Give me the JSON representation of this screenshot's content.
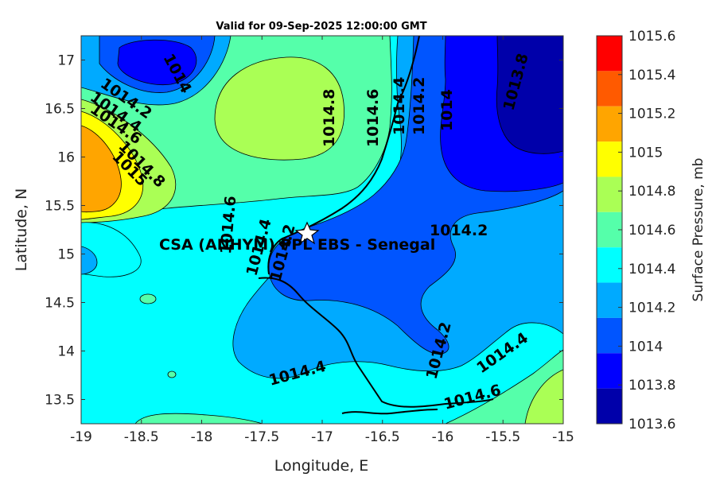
{
  "title": "Valid for 09-Sep-2025 12:00:00 GMT",
  "xlabel": "Longitude, E",
  "ylabel": "Latitude, N",
  "x_ticks": [
    "-19",
    "-18.5",
    "-18",
    "-17.5",
    "-17",
    "-16.5",
    "-16",
    "-15.5",
    "-15"
  ],
  "y_ticks": [
    "17",
    "16.5",
    "16",
    "15.5",
    "15",
    "14.5",
    "14",
    "13.5"
  ],
  "colorbar": {
    "label": "Surface Pressure, mb",
    "ticks": [
      "1015.6",
      "1015.4",
      "1015.2",
      "1015",
      "1014.8",
      "1014.6",
      "1014.4",
      "1014.2",
      "1014",
      "1013.8",
      "1013.6"
    ],
    "colors": [
      "#ff0000",
      "#ff5a00",
      "#ffa500",
      "#ffff00",
      "#aaff55",
      "#55ffaa",
      "#00ffff",
      "#00aaff",
      "#0055ff",
      "#0000ff",
      "#0000aa"
    ]
  },
  "site": {
    "label": "CSA (ANHYM) PPL EBS  - Senegal",
    "marker": "star-icon"
  },
  "contour_labels": [
    "1014",
    "1014.2",
    "1014.4",
    "1014.6",
    "1014.8",
    "1015",
    "1014.8",
    "1014.6",
    "1014.4",
    "1014.2",
    "1014",
    "1013.8",
    "1014.2",
    "1014.6",
    "1014.4",
    "1014.2",
    "1014.2",
    "1014.4",
    "1014.4",
    "1014.6"
  ],
  "chart_data": {
    "type": "heatmap",
    "title": "Valid for 09-Sep-2025 12:00:00 GMT",
    "xlabel": "Longitude, E",
    "ylabel": "Latitude, N",
    "xlim": [
      -19,
      -15
    ],
    "ylim": [
      13.25,
      17.25
    ],
    "variable": "Surface Pressure, mb",
    "value_range": [
      1013.6,
      1015.6
    ],
    "contour_interval": 0.2,
    "site": {
      "lon": -17.1,
      "lat": 15.2
    }
  }
}
